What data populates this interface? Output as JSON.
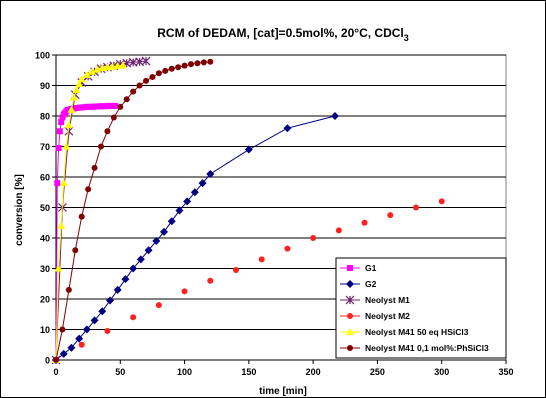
{
  "chart_data": {
    "type": "scatter",
    "title": "RCM of DEDAM, [cat]=0.5mol%, 20°C, CDCl",
    "title_subscript": "3",
    "xlabel": "time [min]",
    "ylabel": "conversion [%]",
    "xlim": [
      0,
      350
    ],
    "ylim": [
      0,
      100
    ],
    "x_ticks": [
      "0",
      "50",
      "100",
      "150",
      "200",
      "250",
      "300",
      "350"
    ],
    "y_ticks": [
      "0",
      "10",
      "20",
      "30",
      "40",
      "50",
      "60",
      "70",
      "80",
      "90",
      "100"
    ],
    "grid": "horizontal",
    "legend_position": "bottom-right",
    "series": [
      {
        "name": "G1",
        "color": "#ff00ff",
        "marker": "square",
        "line": true,
        "x": [
          0,
          1,
          2,
          3,
          4,
          5,
          6,
          7,
          8,
          9,
          10,
          12,
          14,
          16,
          18,
          20,
          22,
          24,
          26,
          28,
          30,
          32,
          34,
          36,
          38,
          40,
          42,
          44,
          46
        ],
        "y": [
          0,
          58,
          69.5,
          75,
          78,
          79.5,
          80.5,
          81,
          81.5,
          82,
          82,
          82.3,
          82.5,
          82.6,
          82.7,
          82.8,
          82.9,
          83,
          83,
          83,
          83.1,
          83.1,
          83.2,
          83.2,
          83.2,
          83.3,
          83.3,
          83.3,
          83.3
        ]
      },
      {
        "name": "G2",
        "color": "#000080",
        "marker": "diamond",
        "line": true,
        "x": [
          0,
          6,
          12,
          18,
          24,
          30,
          36,
          42,
          48,
          54,
          60,
          66,
          72,
          78,
          84,
          90,
          96,
          102,
          108,
          114,
          120,
          150,
          180,
          217
        ],
        "y": [
          0,
          2,
          4,
          7,
          10,
          13,
          16,
          19.5,
          23,
          26.5,
          30,
          33,
          36,
          39,
          42,
          45.5,
          49,
          52,
          55,
          58,
          61,
          69,
          76,
          80
        ]
      },
      {
        "name": "Neolyst M1",
        "color": "#6b1f6b",
        "marker": "star",
        "line": true,
        "x": [
          0,
          5,
          10,
          15,
          20,
          25,
          30,
          35,
          40,
          45,
          50,
          55,
          60,
          65,
          70
        ],
        "y": [
          0,
          50,
          75,
          87,
          91,
          93,
          94.5,
          95.5,
          96,
          96.5,
          97,
          97.3,
          97.6,
          97.8,
          98
        ]
      },
      {
        "name": "Neolyst M2",
        "color": "#ff2020",
        "marker": "circle",
        "line": false,
        "x": [
          0,
          20,
          40,
          60,
          80,
          100,
          120,
          140,
          160,
          180,
          200,
          220,
          240,
          260,
          280,
          300
        ],
        "y": [
          0,
          5,
          9.5,
          14,
          18,
          22.5,
          26,
          29.5,
          33,
          36.5,
          40,
          42.5,
          45,
          47.5,
          50,
          52
        ]
      },
      {
        "name": "Neolyst M41 50 eq HSiCl3",
        "color": "#ffff00",
        "marker": "triangle",
        "line": true,
        "x": [
          0,
          2,
          4,
          6,
          8,
          10,
          12,
          14,
          16,
          18,
          20,
          24,
          28,
          32,
          36,
          40,
          44,
          48,
          52
        ],
        "y": [
          0,
          30,
          44,
          58,
          70,
          77,
          82,
          86,
          88.5,
          90.5,
          92,
          93.5,
          94.5,
          95.2,
          95.7,
          96,
          96.2,
          96.4,
          96.6
        ]
      },
      {
        "name": "Neolyst M41 0,1 mol%:PhSiCl3",
        "color": "#800000",
        "marker": "circle",
        "line": true,
        "x": [
          0,
          5,
          10,
          15,
          20,
          25,
          30,
          35,
          40,
          45,
          50,
          55,
          60,
          65,
          70,
          75,
          80,
          85,
          90,
          95,
          100,
          105,
          110,
          115,
          120
        ],
        "y": [
          0,
          10,
          23,
          36,
          47,
          56,
          63,
          70,
          75,
          79.5,
          83,
          85.5,
          88,
          90,
          91.5,
          92.8,
          94,
          94.8,
          95.5,
          96,
          96.5,
          97,
          97.3,
          97.6,
          97.8
        ]
      }
    ]
  }
}
